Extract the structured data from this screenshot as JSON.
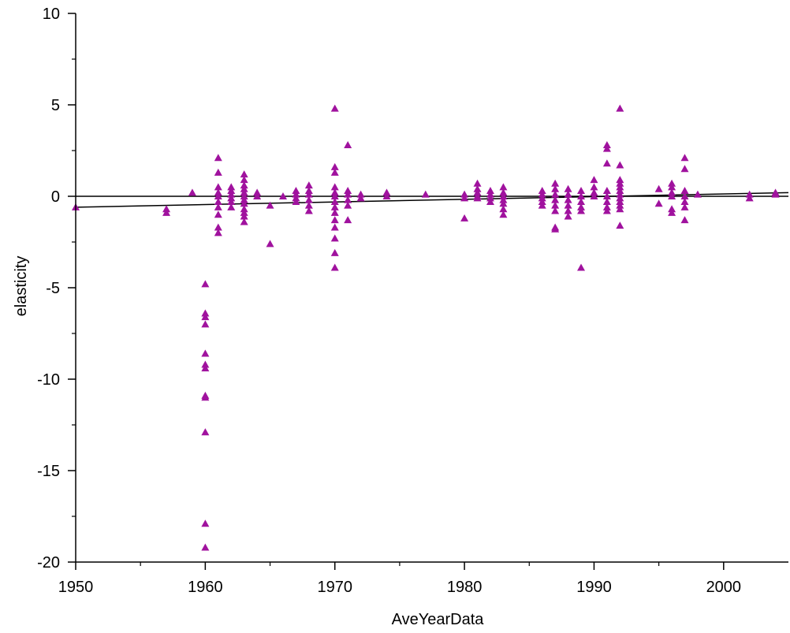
{
  "chart_data": {
    "type": "scatter",
    "title": "",
    "xlabel": "AveYearData",
    "ylabel": "elasticity",
    "xlim": [
      1950,
      2005
    ],
    "ylim": [
      -20,
      10
    ],
    "xticks": [
      1950,
      1960,
      1970,
      1980,
      1990,
      2000
    ],
    "yticks": [
      10,
      5,
      0,
      -5,
      -10,
      -15,
      -20
    ],
    "grid": false,
    "legend": "none",
    "marker": "triangle",
    "colors": {
      "points": "#a0129e",
      "lines": "#000000"
    },
    "lines": [
      {
        "x": [
          1950,
          2005
        ],
        "y": [
          0,
          0
        ]
      },
      {
        "x": [
          1950,
          2005
        ],
        "y": [
          -0.6,
          0.2
        ]
      }
    ],
    "points": [
      [
        1950,
        -0.6
      ],
      [
        1957,
        -0.7
      ],
      [
        1957,
        -0.9
      ],
      [
        1959,
        0.2
      ],
      [
        1960,
        -4.8
      ],
      [
        1960,
        -6.4
      ],
      [
        1960,
        -6.6
      ],
      [
        1960,
        -7.0
      ],
      [
        1960,
        -8.6
      ],
      [
        1960,
        -9.2
      ],
      [
        1960,
        -9.4
      ],
      [
        1960,
        -10.9
      ],
      [
        1960,
        -11.0
      ],
      [
        1960,
        -12.9
      ],
      [
        1960,
        -17.9
      ],
      [
        1960,
        -19.2
      ],
      [
        1961,
        2.1
      ],
      [
        1961,
        1.3
      ],
      [
        1961,
        0.5
      ],
      [
        1961,
        0.2
      ],
      [
        1961,
        0.0
      ],
      [
        1961,
        -0.3
      ],
      [
        1961,
        -0.6
      ],
      [
        1961,
        -1.0
      ],
      [
        1961,
        -1.7
      ],
      [
        1961,
        -2.0
      ],
      [
        1962,
        0.5
      ],
      [
        1962,
        0.3
      ],
      [
        1962,
        0.1
      ],
      [
        1962,
        -0.1
      ],
      [
        1962,
        -0.3
      ],
      [
        1962,
        -0.6
      ],
      [
        1963,
        1.2
      ],
      [
        1963,
        0.9
      ],
      [
        1963,
        0.6
      ],
      [
        1963,
        0.4
      ],
      [
        1963,
        0.2
      ],
      [
        1963,
        0.0
      ],
      [
        1963,
        -0.2
      ],
      [
        1963,
        -0.4
      ],
      [
        1963,
        -0.7
      ],
      [
        1963,
        -0.9
      ],
      [
        1963,
        -1.1
      ],
      [
        1963,
        -1.4
      ],
      [
        1964,
        0.2
      ],
      [
        1964,
        0.0
      ],
      [
        1965,
        -0.5
      ],
      [
        1965,
        -2.6
      ],
      [
        1966,
        0.0
      ],
      [
        1967,
        0.3
      ],
      [
        1967,
        0.1
      ],
      [
        1967,
        -0.1
      ],
      [
        1967,
        -0.3
      ],
      [
        1968,
        0.6
      ],
      [
        1968,
        0.3
      ],
      [
        1968,
        0.1
      ],
      [
        1968,
        -0.2
      ],
      [
        1968,
        -0.5
      ],
      [
        1968,
        -0.8
      ],
      [
        1970,
        4.8
      ],
      [
        1970,
        1.6
      ],
      [
        1970,
        1.3
      ],
      [
        1970,
        0.5
      ],
      [
        1970,
        0.2
      ],
      [
        1970,
        0.0
      ],
      [
        1970,
        -0.3
      ],
      [
        1970,
        -0.6
      ],
      [
        1970,
        -0.9
      ],
      [
        1970,
        -1.3
      ],
      [
        1970,
        -1.7
      ],
      [
        1970,
        -2.3
      ],
      [
        1970,
        -3.1
      ],
      [
        1970,
        -3.9
      ],
      [
        1971,
        2.8
      ],
      [
        1971,
        0.3
      ],
      [
        1971,
        0.1
      ],
      [
        1971,
        -0.2
      ],
      [
        1971,
        -0.5
      ],
      [
        1971,
        -1.3
      ],
      [
        1972,
        0.1
      ],
      [
        1972,
        -0.1
      ],
      [
        1974,
        0.2
      ],
      [
        1974,
        0.0
      ],
      [
        1977,
        0.1
      ],
      [
        1980,
        0.1
      ],
      [
        1980,
        -0.1
      ],
      [
        1980,
        -1.2
      ],
      [
        1981,
        0.7
      ],
      [
        1981,
        0.4
      ],
      [
        1981,
        0.2
      ],
      [
        1981,
        0.0
      ],
      [
        1981,
        -0.1
      ],
      [
        1982,
        0.3
      ],
      [
        1982,
        0.1
      ],
      [
        1982,
        -0.1
      ],
      [
        1982,
        -0.3
      ],
      [
        1983,
        0.5
      ],
      [
        1983,
        0.2
      ],
      [
        1983,
        0.0
      ],
      [
        1983,
        -0.2
      ],
      [
        1983,
        -0.4
      ],
      [
        1983,
        -0.7
      ],
      [
        1983,
        -1.0
      ],
      [
        1986,
        0.3
      ],
      [
        1986,
        0.1
      ],
      [
        1986,
        -0.1
      ],
      [
        1986,
        -0.3
      ],
      [
        1986,
        -0.5
      ],
      [
        1987,
        0.7
      ],
      [
        1987,
        0.4
      ],
      [
        1987,
        0.1
      ],
      [
        1987,
        -0.2
      ],
      [
        1987,
        -0.5
      ],
      [
        1987,
        -0.8
      ],
      [
        1987,
        -1.7
      ],
      [
        1987,
        -1.8
      ],
      [
        1988,
        0.4
      ],
      [
        1988,
        0.1
      ],
      [
        1988,
        -0.2
      ],
      [
        1988,
        -0.5
      ],
      [
        1988,
        -0.8
      ],
      [
        1988,
        -1.1
      ],
      [
        1989,
        0.3
      ],
      [
        1989,
        0.0
      ],
      [
        1989,
        -0.3
      ],
      [
        1989,
        -0.6
      ],
      [
        1989,
        -0.8
      ],
      [
        1989,
        -3.9
      ],
      [
        1990,
        0.9
      ],
      [
        1990,
        0.5
      ],
      [
        1990,
        0.2
      ],
      [
        1990,
        0.0
      ],
      [
        1991,
        2.8
      ],
      [
        1991,
        2.6
      ],
      [
        1991,
        1.8
      ],
      [
        1991,
        0.3
      ],
      [
        1991,
        0.0
      ],
      [
        1991,
        -0.3
      ],
      [
        1991,
        -0.6
      ],
      [
        1991,
        -0.8
      ],
      [
        1992,
        4.8
      ],
      [
        1992,
        1.7
      ],
      [
        1992,
        0.9
      ],
      [
        1992,
        0.7
      ],
      [
        1992,
        0.5
      ],
      [
        1992,
        0.3
      ],
      [
        1992,
        0.1
      ],
      [
        1992,
        -0.1
      ],
      [
        1992,
        -0.3
      ],
      [
        1992,
        -0.5
      ],
      [
        1992,
        -0.7
      ],
      [
        1992,
        -1.6
      ],
      [
        1995,
        0.4
      ],
      [
        1995,
        -0.4
      ],
      [
        1996,
        0.7
      ],
      [
        1996,
        0.5
      ],
      [
        1996,
        0.2
      ],
      [
        1996,
        0.0
      ],
      [
        1996,
        -0.7
      ],
      [
        1996,
        -0.9
      ],
      [
        1997,
        2.1
      ],
      [
        1997,
        1.5
      ],
      [
        1997,
        0.3
      ],
      [
        1997,
        0.0
      ],
      [
        1997,
        -0.3
      ],
      [
        1997,
        -0.6
      ],
      [
        1997,
        -1.3
      ],
      [
        1998,
        0.1
      ],
      [
        2002,
        0.1
      ],
      [
        2002,
        -0.1
      ],
      [
        2004,
        0.2
      ],
      [
        2004,
        0.1
      ]
    ]
  }
}
